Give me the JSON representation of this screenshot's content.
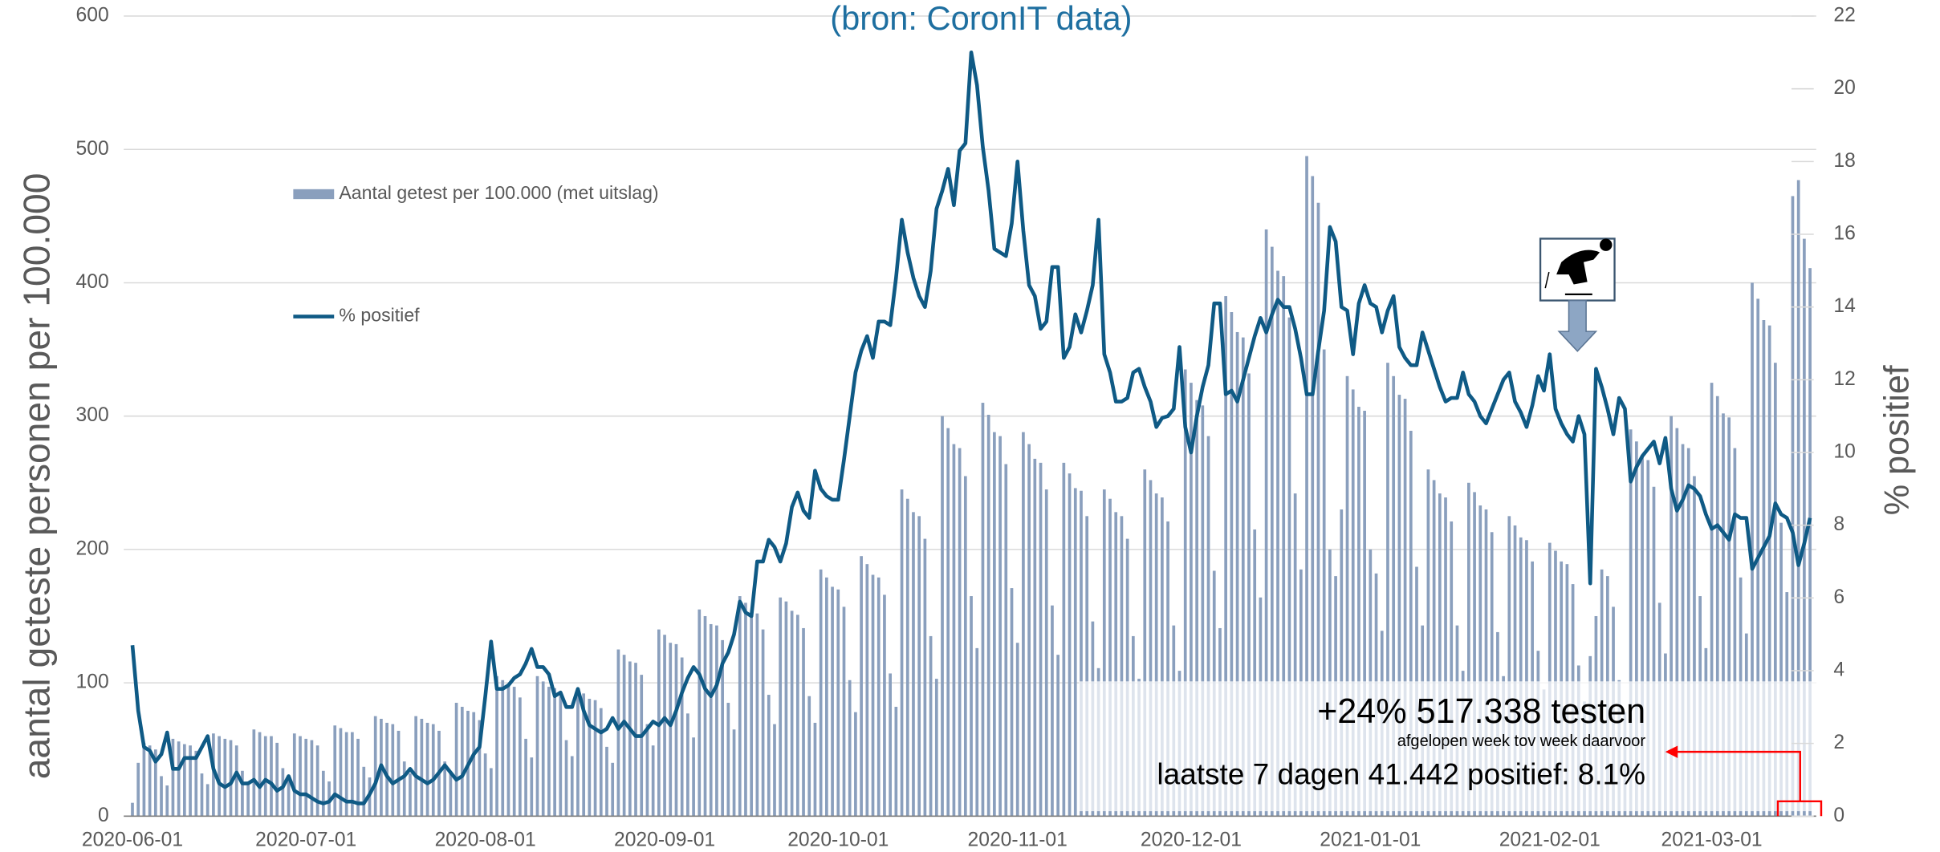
{
  "chart_data": {
    "type": "bar",
    "title": "(bron: CoronIT data)",
    "y_label": "aantal geteste personen per 100.000",
    "y2_label": "% positief",
    "annotations": [
      "+24% 517.338 testen",
      "afgelopen week tov week daarvoor",
      "laatste 7 dagen 41.442 positief: 8.1%"
    ],
    "legend": "upper left",
    "grid": true,
    "ylim": [
      0,
      600
    ],
    "yticks": [
      0,
      100,
      200,
      300,
      400,
      500,
      600
    ],
    "y2lim": [
      0,
      22
    ],
    "y2ticks": [
      0,
      2,
      4,
      6,
      8,
      10,
      12,
      14,
      16,
      18,
      20,
      22
    ],
    "categories": [
      "2020-06-01",
      null,
      null,
      null,
      null,
      null,
      null,
      null,
      null,
      null,
      null,
      null,
      null,
      null,
      null,
      null,
      null,
      null,
      null,
      null,
      null,
      null,
      null,
      null,
      null,
      null,
      null,
      null,
      null,
      null,
      "2020-07-01",
      null,
      null,
      null,
      null,
      null,
      null,
      null,
      null,
      null,
      null,
      null,
      null,
      null,
      null,
      null,
      null,
      null,
      null,
      null,
      null,
      null,
      null,
      null,
      null,
      null,
      null,
      null,
      null,
      null,
      null,
      "2020-08-01",
      null,
      null,
      null,
      null,
      null,
      null,
      null,
      null,
      null,
      null,
      null,
      null,
      null,
      null,
      null,
      null,
      null,
      null,
      null,
      null,
      null,
      null,
      null,
      null,
      null,
      null,
      null,
      null,
      null,
      null,
      "2020-09-01",
      null,
      null,
      null,
      null,
      null,
      null,
      null,
      null,
      null,
      null,
      null,
      null,
      null,
      null,
      null,
      null,
      null,
      null,
      null,
      null,
      null,
      null,
      null,
      null,
      null,
      null,
      null,
      null,
      null,
      "2020-10-01",
      null,
      null,
      null,
      null,
      null,
      null,
      null,
      null,
      null,
      null,
      null,
      null,
      null,
      null,
      null,
      null,
      null,
      null,
      null,
      null,
      null,
      null,
      null,
      null,
      null,
      null,
      null,
      null,
      null,
      null,
      "2020-11-01",
      null,
      null,
      null,
      null,
      null,
      null,
      null,
      null,
      null,
      null,
      null,
      null,
      null,
      null,
      null,
      null,
      null,
      null,
      null,
      null,
      null,
      null,
      null,
      null,
      null,
      null,
      null,
      null,
      null,
      "2020-12-01",
      null,
      null,
      null,
      null,
      null,
      null,
      null,
      null,
      null,
      null,
      null,
      null,
      null,
      null,
      null,
      null,
      null,
      null,
      null,
      null,
      null,
      null,
      null,
      null,
      null,
      null,
      null,
      null,
      null,
      null,
      "2021-01-01",
      null,
      null,
      null,
      null,
      null,
      null,
      null,
      null,
      null,
      null,
      null,
      null,
      null,
      null,
      null,
      null,
      null,
      null,
      null,
      null,
      null,
      null,
      null,
      null,
      null,
      null,
      null,
      null,
      null,
      null,
      "2021-02-01",
      null,
      null,
      null,
      null,
      null,
      null,
      null,
      null,
      null,
      null,
      null,
      null,
      null,
      null,
      null,
      null,
      null,
      null,
      null,
      null,
      null,
      null,
      null,
      null,
      null,
      null,
      null,
      "2021-03-01",
      null,
      null,
      null,
      null,
      null,
      null,
      null,
      null,
      null,
      null,
      null,
      null,
      null,
      null,
      null,
      null,
      null
    ],
    "series": [
      {
        "name": "Aantal getest per 100.000 (met uitslag)",
        "type": "bar",
        "color": "#8a9fbd",
        "values": [
          10,
          40,
          55,
          53,
          50,
          30,
          23,
          58,
          56,
          54,
          53,
          49,
          32,
          24,
          62,
          60,
          58,
          57,
          53,
          34,
          26,
          65,
          63,
          60,
          60,
          55,
          36,
          27,
          62,
          60,
          58,
          57,
          53,
          34,
          26,
          68,
          66,
          63,
          63,
          58,
          37,
          29,
          75,
          73,
          70,
          69,
          64,
          41,
          32,
          75,
          73,
          70,
          69,
          64,
          41,
          32,
          85,
          82,
          79,
          78,
          72,
          47,
          36,
          105,
          102,
          98,
          97,
          89,
          58,
          44,
          105,
          101,
          97,
          96,
          90,
          57,
          45,
          95,
          92,
          88,
          87,
          81,
          52,
          40,
          125,
          121,
          116,
          115,
          106,
          69,
          53,
          140,
          136,
          130,
          129,
          119,
          77,
          59,
          155,
          150,
          144,
          143,
          132,
          85,
          65,
          165,
          160,
          153,
          152,
          140,
          91,
          69,
          164,
          161,
          154,
          151,
          141,
          90,
          70,
          185,
          179,
          172,
          170,
          157,
          102,
          78,
          195,
          189,
          181,
          179,
          166,
          107,
          82,
          245,
          238,
          228,
          225,
          208,
          135,
          103,
          300,
          291,
          279,
          276,
          255,
          165,
          126,
          310,
          301,
          288,
          285,
          264,
          171,
          130,
          288,
          279,
          268,
          265,
          245,
          158,
          121,
          265,
          257,
          246,
          244,
          225,
          146,
          111,
          245,
          238,
          228,
          225,
          208,
          135,
          103,
          260,
          252,
          242,
          239,
          221,
          143,
          109,
          335,
          325,
          312,
          308,
          285,
          184,
          141,
          390,
          378,
          363,
          359,
          332,
          215,
          164,
          440,
          427,
          409,
          405,
          374,
          242,
          185,
          495,
          480,
          460,
          350,
          200,
          180,
          230,
          330,
          320,
          307,
          304,
          200,
          182,
          139,
          340,
          330,
          316,
          313,
          289,
          187,
          143,
          260,
          252,
          242,
          239,
          221,
          143,
          109,
          250,
          243,
          233,
          230,
          213,
          138,
          105,
          225,
          218,
          209,
          207,
          191,
          124,
          95,
          205,
          199,
          191,
          189,
          174,
          113,
          86,
          120,
          150,
          185,
          180,
          157,
          102,
          78,
          290,
          281,
          270,
          267,
          247,
          160,
          122,
          300,
          291,
          279,
          276,
          255,
          165,
          126,
          325,
          315,
          302,
          299,
          276,
          179,
          137,
          400,
          388,
          372,
          368,
          340,
          220,
          168,
          465,
          477,
          433,
          411
        ]
      },
      {
        "name": "% positief",
        "type": "line",
        "axis": "y2",
        "color": "#0f5a85",
        "values": [
          4.7,
          2.9,
          1.9,
          1.8,
          1.5,
          1.7,
          2.3,
          1.3,
          1.3,
          1.6,
          1.6,
          1.6,
          1.9,
          2.2,
          1.3,
          0.9,
          0.8,
          0.9,
          1.2,
          0.9,
          0.9,
          1.0,
          0.8,
          1.0,
          0.9,
          0.7,
          0.8,
          1.1,
          0.7,
          0.6,
          0.6,
          0.5,
          0.4,
          0.35,
          0.4,
          0.6,
          0.5,
          0.4,
          0.4,
          0.35,
          0.35,
          0.6,
          0.9,
          1.4,
          1.1,
          0.9,
          1.0,
          1.1,
          1.3,
          1.1,
          1.0,
          0.9,
          1.0,
          1.2,
          1.4,
          1.2,
          1.0,
          1.1,
          1.4,
          1.7,
          1.9,
          3.3,
          4.8,
          3.5,
          3.5,
          3.6,
          3.8,
          3.9,
          4.2,
          4.6,
          4.1,
          4.1,
          3.9,
          3.3,
          3.4,
          3.0,
          3.0,
          3.5,
          2.9,
          2.5,
          2.4,
          2.3,
          2.4,
          2.7,
          2.4,
          2.6,
          2.4,
          2.2,
          2.2,
          2.4,
          2.6,
          2.5,
          2.7,
          2.5,
          2.9,
          3.4,
          3.8,
          4.1,
          3.9,
          3.5,
          3.3,
          3.6,
          4.2,
          4.5,
          5.0,
          5.9,
          5.6,
          5.5,
          7.0,
          7.0,
          7.6,
          7.4,
          7.0,
          7.5,
          8.5,
          8.9,
          8.4,
          8.2,
          9.5,
          9.0,
          8.8,
          8.7,
          8.7,
          9.8,
          11.0,
          12.2,
          12.8,
          13.2,
          12.6,
          13.6,
          13.6,
          13.5,
          14.8,
          16.4,
          15.5,
          14.8,
          14.3,
          14.0,
          15.0,
          16.7,
          17.2,
          17.8,
          16.8,
          18.3,
          18.5,
          21.0,
          20.1,
          18.4,
          17.2,
          15.6,
          15.5,
          15.4,
          16.3,
          18.0,
          16.1,
          14.6,
          14.3,
          13.4,
          13.6,
          15.1,
          15.1,
          12.6,
          12.9,
          13.8,
          13.3,
          13.9,
          14.6,
          16.4,
          12.7,
          12.2,
          11.4,
          11.4,
          11.5,
          12.2,
          12.3,
          11.8,
          11.4,
          10.7,
          10.95,
          11.0,
          11.2,
          12.9,
          10.7,
          10.0,
          11.0,
          11.8,
          12.4,
          14.1,
          14.1,
          11.6,
          11.7,
          11.4,
          12.0,
          12.6,
          13.2,
          13.7,
          13.3,
          13.8,
          14.2,
          14.0,
          14.0,
          13.4,
          12.6,
          11.6,
          11.6,
          12.8,
          13.9,
          16.2,
          15.8,
          14.0,
          13.9,
          12.7,
          14.1,
          14.6,
          14.1,
          14.0,
          13.3,
          13.9,
          14.3,
          12.9,
          12.6,
          12.4,
          12.4,
          13.3,
          12.8,
          12.3,
          11.8,
          11.4,
          11.5,
          11.5,
          12.2,
          11.6,
          11.4,
          11.0,
          10.8,
          11.2,
          11.6,
          12.0,
          12.2,
          11.4,
          11.1,
          10.7,
          11.3,
          12.1,
          11.7,
          12.7,
          11.2,
          10.8,
          10.5,
          10.3,
          11.0,
          10.5,
          6.4,
          12.3,
          11.8,
          11.2,
          10.5,
          11.5,
          11.2,
          9.2,
          9.6,
          9.9,
          10.1,
          10.3,
          9.7,
          10.4,
          9.0,
          8.4,
          8.7,
          9.1,
          9.0,
          8.8,
          8.3,
          7.9,
          8.0,
          7.8,
          7.6,
          8.3,
          8.2,
          8.2,
          6.8,
          7.1,
          7.4,
          7.7,
          8.6,
          8.3,
          8.2,
          7.8,
          6.9,
          7.5,
          8.2
        ]
      }
    ]
  }
}
